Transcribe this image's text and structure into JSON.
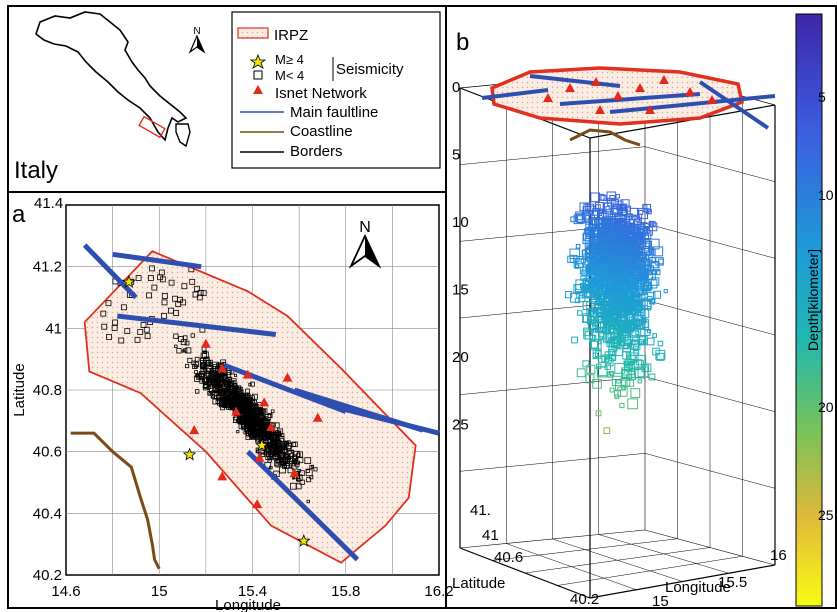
{
  "inset": {
    "title": "Italy",
    "north_label": "N"
  },
  "legend": {
    "items": [
      {
        "symbol": "hatched-polygon",
        "label": "IRPZ",
        "color": "#e03020"
      },
      {
        "symbol": "yellow-star",
        "label": "M≥ 4",
        "color": "#f2e600"
      },
      {
        "symbol": "open-square",
        "label": "M< 4",
        "color": "#000000"
      },
      {
        "symbol": "red-triangle",
        "label": "Isnet Network",
        "color": "#e02a1b"
      },
      {
        "symbol": "blue-line",
        "label": "Main faultline",
        "color": "#2f4fb0"
      },
      {
        "symbol": "brown-line",
        "label": "Coastline",
        "color": "#7a4a14"
      },
      {
        "symbol": "black-line",
        "label": "Borders",
        "color": "#000000"
      }
    ],
    "group_label": "Seismicity"
  },
  "panel_a": {
    "label": "a",
    "north_label": "N",
    "xlabel": "Longitude",
    "ylabel": "Latitude",
    "x_ticks": [
      "14.6",
      "15",
      "15.4",
      "15.8",
      "16.2"
    ],
    "y_ticks": [
      "41.4",
      "41.2",
      "41",
      "40.8",
      "40.6",
      "40.4",
      "40.2"
    ]
  },
  "panel_b": {
    "label": "b",
    "depth_ticks": [
      "0",
      "5",
      "10",
      "15",
      "20",
      "25"
    ],
    "lat_ticks": [
      "41.",
      "41",
      "40.6",
      "40.2"
    ],
    "lon_ticks": [
      "15",
      "15.5",
      "16"
    ],
    "xlabel": "Longitude",
    "ylabel": "Latitude"
  },
  "colorbar": {
    "label": "Depth[kilometer]",
    "ticks": [
      "5",
      "10",
      "20",
      "25"
    ]
  },
  "chart_data": {
    "type": "scatter",
    "panel_a_ranges": {
      "lon": [
        14.6,
        16.2
      ],
      "lat": [
        40.2,
        41.4
      ]
    },
    "panel_b_depth_range": [
      0,
      30
    ],
    "seismicity_strong_M_ge_4": [
      {
        "lon": 14.87,
        "lat": 41.15
      },
      {
        "lon": 15.13,
        "lat": 40.59
      },
      {
        "lon": 15.44,
        "lat": 40.62
      },
      {
        "lon": 15.62,
        "lat": 40.31
      }
    ],
    "isnet_stations": [
      {
        "lon": 15.2,
        "lat": 40.95
      },
      {
        "lon": 15.27,
        "lat": 40.87
      },
      {
        "lon": 15.38,
        "lat": 40.85
      },
      {
        "lon": 15.55,
        "lat": 40.84
      },
      {
        "lon": 15.45,
        "lat": 40.76
      },
      {
        "lon": 15.33,
        "lat": 40.73
      },
      {
        "lon": 15.48,
        "lat": 40.68
      },
      {
        "lon": 15.68,
        "lat": 40.71
      },
      {
        "lon": 15.15,
        "lat": 40.67
      },
      {
        "lon": 15.27,
        "lat": 40.52
      },
      {
        "lon": 15.43,
        "lat": 40.58
      },
      {
        "lon": 15.58,
        "lat": 40.53
      },
      {
        "lon": 15.42,
        "lat": 40.43
      }
    ],
    "faults": [
      [
        [
          14.68,
          41.27
        ],
        [
          14.9,
          41.1
        ]
      ],
      [
        [
          14.8,
          41.24
        ],
        [
          15.18,
          41.2
        ]
      ],
      [
        [
          14.82,
          41.04
        ],
        [
          15.5,
          40.98
        ]
      ],
      [
        [
          15.28,
          40.88
        ],
        [
          15.8,
          40.73
        ]
      ],
      [
        [
          15.58,
          40.8
        ],
        [
          16.13,
          40.67
        ]
      ],
      [
        [
          15.78,
          40.74
        ],
        [
          16.2,
          40.66
        ]
      ],
      [
        [
          15.38,
          40.6
        ],
        [
          15.85,
          40.25
        ]
      ]
    ],
    "irpz_polygon": [
      [
        14.97,
        41.25
      ],
      [
        15.38,
        41.12
      ],
      [
        15.55,
        41.04
      ],
      [
        15.78,
        40.87
      ],
      [
        16.1,
        40.62
      ],
      [
        16.07,
        40.45
      ],
      [
        15.97,
        40.36
      ],
      [
        15.78,
        40.24
      ],
      [
        15.48,
        40.36
      ],
      [
        15.2,
        40.6
      ],
      [
        14.92,
        40.79
      ],
      [
        14.7,
        40.86
      ],
      [
        14.68,
        41.02
      ]
    ],
    "coastline": [
      [
        14.62,
        40.66
      ],
      [
        14.72,
        40.66
      ],
      [
        14.8,
        40.6
      ],
      [
        14.88,
        40.55
      ],
      [
        14.92,
        40.45
      ],
      [
        14.95,
        40.38
      ],
      [
        14.97,
        40.3
      ],
      [
        14.98,
        40.25
      ],
      [
        15.0,
        40.22
      ]
    ]
  }
}
